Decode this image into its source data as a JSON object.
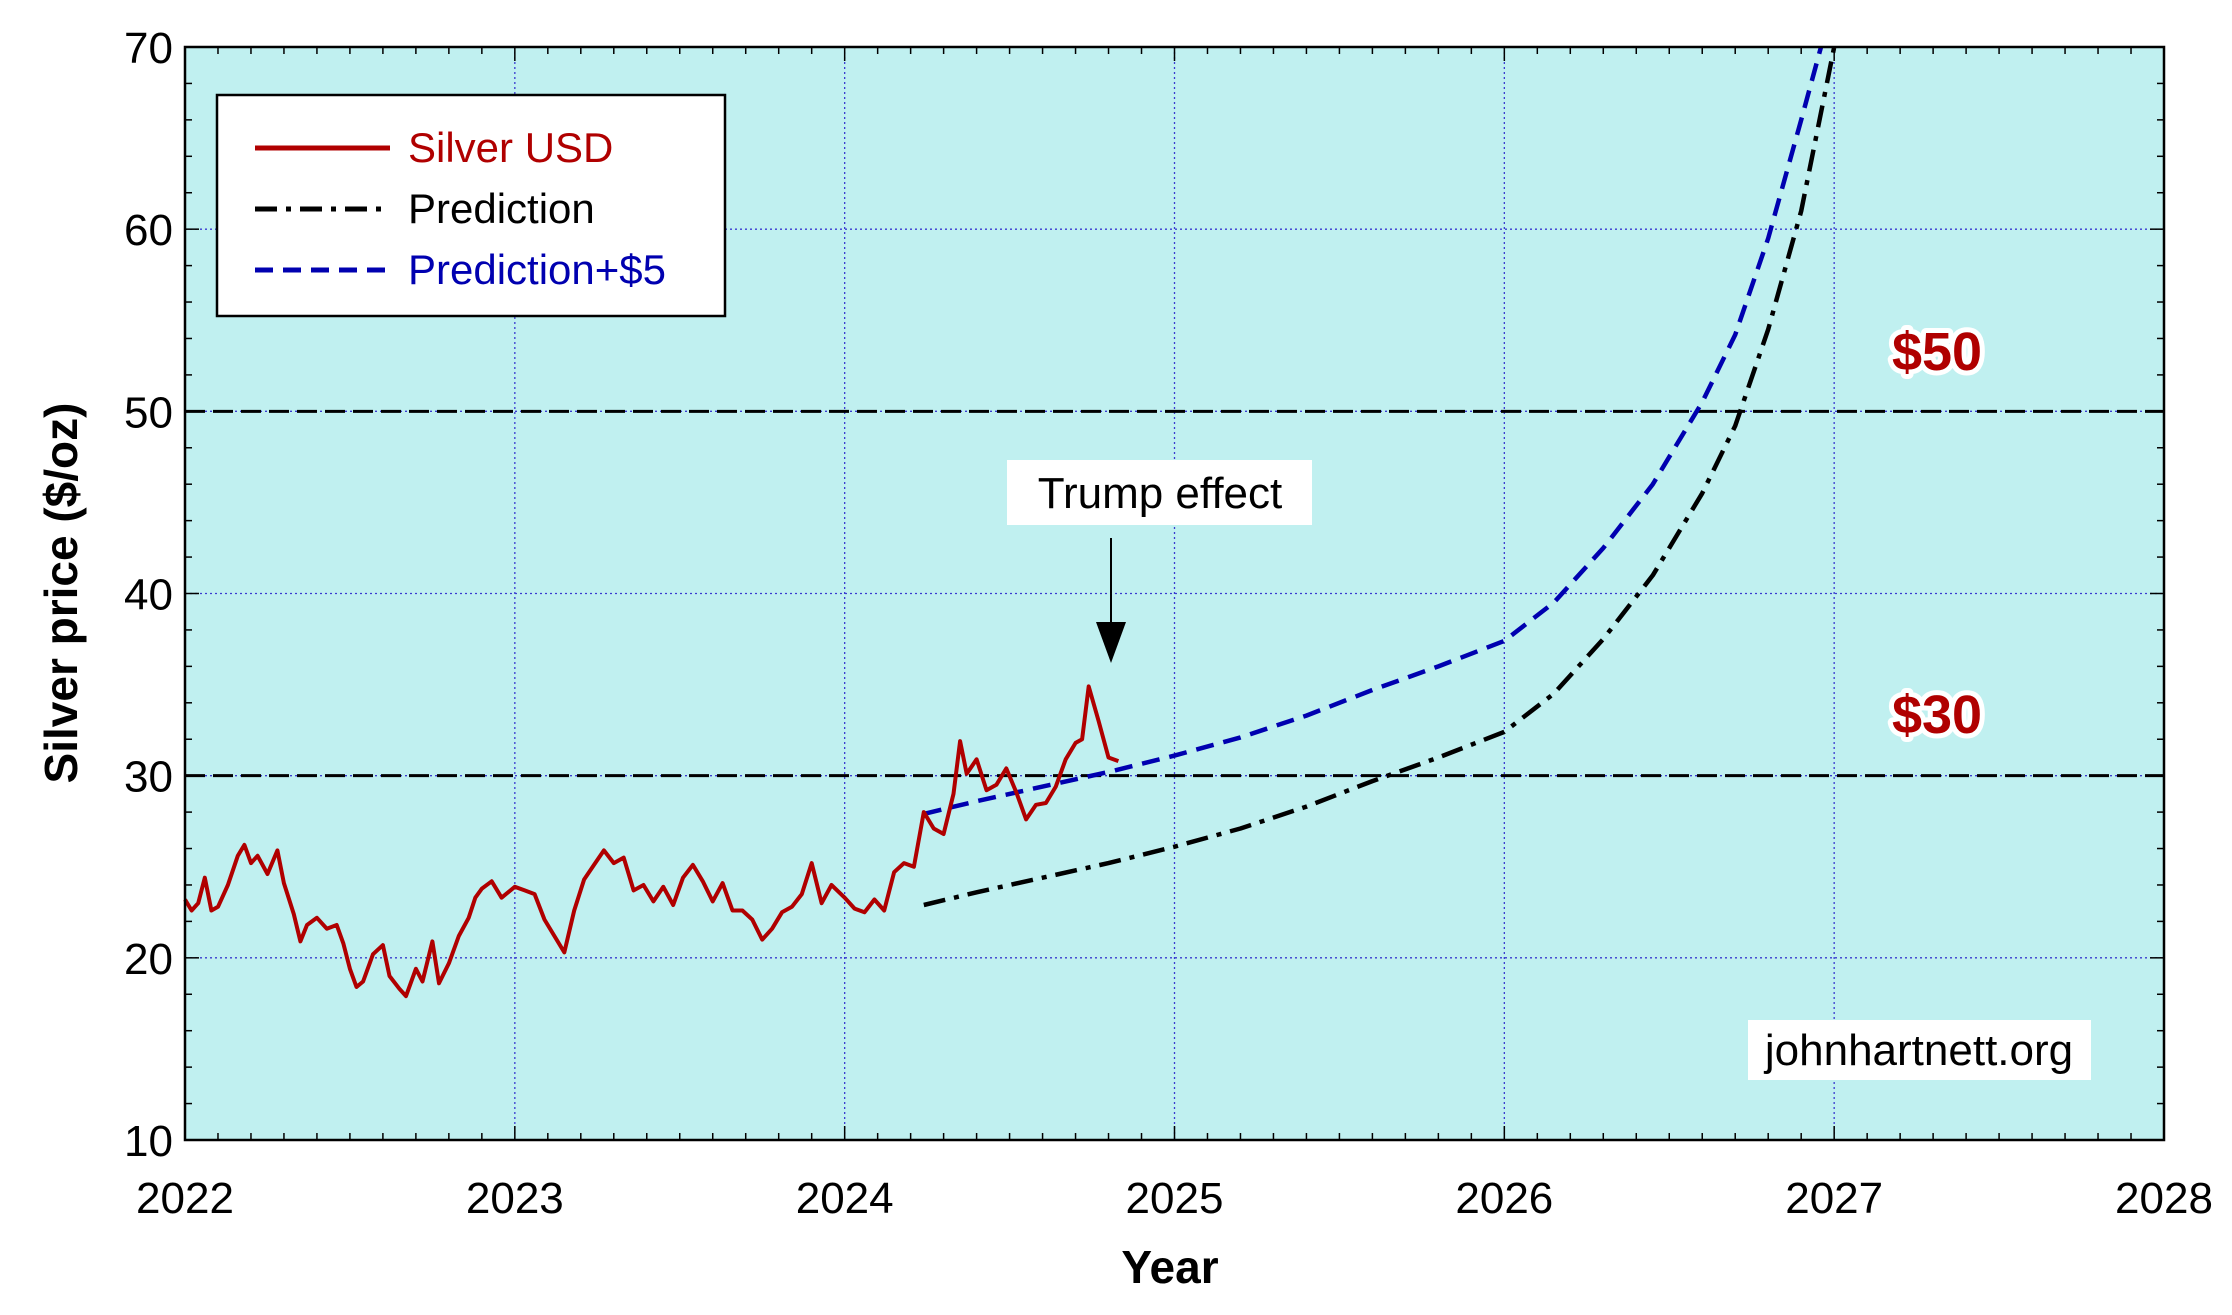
{
  "chart_data": {
    "type": "line",
    "xlabel": "Year",
    "ylabel": "Silver price ($/oz)",
    "xlim": [
      2022,
      2028
    ],
    "ylim": [
      10,
      70
    ],
    "xticks": [
      2022,
      2023,
      2024,
      2025,
      2026,
      2027,
      2028
    ],
    "yticks": [
      10,
      20,
      30,
      40,
      50,
      60,
      70
    ],
    "grid": true,
    "background": "#c0f0f0",
    "legend_position": "top-left",
    "series": [
      {
        "name": "Silver USD",
        "color": "#b00000",
        "style": "solid",
        "points": [
          [
            2022.0,
            23.2
          ],
          [
            2022.02,
            22.6
          ],
          [
            2022.04,
            23.0
          ],
          [
            2022.06,
            24.4
          ],
          [
            2022.08,
            22.6
          ],
          [
            2022.1,
            22.8
          ],
          [
            2022.13,
            24.0
          ],
          [
            2022.16,
            25.6
          ],
          [
            2022.18,
            26.2
          ],
          [
            2022.2,
            25.2
          ],
          [
            2022.22,
            25.6
          ],
          [
            2022.25,
            24.6
          ],
          [
            2022.28,
            25.9
          ],
          [
            2022.3,
            24.1
          ],
          [
            2022.33,
            22.4
          ],
          [
            2022.35,
            20.9
          ],
          [
            2022.37,
            21.8
          ],
          [
            2022.4,
            22.2
          ],
          [
            2022.43,
            21.6
          ],
          [
            2022.46,
            21.8
          ],
          [
            2022.48,
            20.8
          ],
          [
            2022.5,
            19.4
          ],
          [
            2022.52,
            18.4
          ],
          [
            2022.54,
            18.7
          ],
          [
            2022.57,
            20.2
          ],
          [
            2022.6,
            20.7
          ],
          [
            2022.62,
            19.0
          ],
          [
            2022.65,
            18.3
          ],
          [
            2022.67,
            17.9
          ],
          [
            2022.7,
            19.4
          ],
          [
            2022.72,
            18.7
          ],
          [
            2022.75,
            20.9
          ],
          [
            2022.77,
            18.6
          ],
          [
            2022.8,
            19.7
          ],
          [
            2022.83,
            21.2
          ],
          [
            2022.86,
            22.2
          ],
          [
            2022.88,
            23.3
          ],
          [
            2022.9,
            23.8
          ],
          [
            2022.93,
            24.2
          ],
          [
            2022.96,
            23.3
          ],
          [
            2023.0,
            23.9
          ],
          [
            2023.03,
            23.7
          ],
          [
            2023.06,
            23.5
          ],
          [
            2023.09,
            22.1
          ],
          [
            2023.12,
            21.2
          ],
          [
            2023.15,
            20.3
          ],
          [
            2023.18,
            22.6
          ],
          [
            2023.21,
            24.3
          ],
          [
            2023.24,
            25.1
          ],
          [
            2023.27,
            25.9
          ],
          [
            2023.3,
            25.2
          ],
          [
            2023.33,
            25.5
          ],
          [
            2023.36,
            23.7
          ],
          [
            2023.39,
            24.0
          ],
          [
            2023.42,
            23.1
          ],
          [
            2023.45,
            23.9
          ],
          [
            2023.48,
            22.9
          ],
          [
            2023.51,
            24.4
          ],
          [
            2023.54,
            25.1
          ],
          [
            2023.57,
            24.2
          ],
          [
            2023.6,
            23.1
          ],
          [
            2023.63,
            24.1
          ],
          [
            2023.66,
            22.6
          ],
          [
            2023.69,
            22.6
          ],
          [
            2023.72,
            22.1
          ],
          [
            2023.75,
            21.0
          ],
          [
            2023.78,
            21.6
          ],
          [
            2023.81,
            22.5
          ],
          [
            2023.84,
            22.8
          ],
          [
            2023.87,
            23.5
          ],
          [
            2023.9,
            25.2
          ],
          [
            2023.93,
            23.0
          ],
          [
            2023.96,
            24.0
          ],
          [
            2024.0,
            23.3
          ],
          [
            2024.03,
            22.7
          ],
          [
            2024.06,
            22.5
          ],
          [
            2024.09,
            23.2
          ],
          [
            2024.12,
            22.6
          ],
          [
            2024.15,
            24.7
          ],
          [
            2024.18,
            25.2
          ],
          [
            2024.21,
            25.0
          ],
          [
            2024.24,
            28.0
          ],
          [
            2024.27,
            27.1
          ],
          [
            2024.3,
            26.8
          ],
          [
            2024.33,
            29.0
          ],
          [
            2024.35,
            31.9
          ],
          [
            2024.37,
            30.1
          ],
          [
            2024.4,
            30.9
          ],
          [
            2024.43,
            29.2
          ],
          [
            2024.46,
            29.5
          ],
          [
            2024.49,
            30.4
          ],
          [
            2024.52,
            29.1
          ],
          [
            2024.55,
            27.6
          ],
          [
            2024.58,
            28.4
          ],
          [
            2024.61,
            28.5
          ],
          [
            2024.64,
            29.4
          ],
          [
            2024.67,
            30.9
          ],
          [
            2024.7,
            31.8
          ],
          [
            2024.72,
            32.0
          ],
          [
            2024.74,
            34.9
          ],
          [
            2024.77,
            33.0
          ],
          [
            2024.8,
            31.0
          ],
          [
            2024.83,
            30.8
          ]
        ]
      },
      {
        "name": "Prediction",
        "color": "#000000",
        "style": "dashdot",
        "points": [
          [
            2024.24,
            22.9
          ],
          [
            2024.4,
            23.6
          ],
          [
            2024.6,
            24.4
          ],
          [
            2024.8,
            25.2
          ],
          [
            2025.0,
            26.1
          ],
          [
            2025.2,
            27.1
          ],
          [
            2025.4,
            28.3
          ],
          [
            2025.6,
            29.7
          ],
          [
            2025.8,
            31.0
          ],
          [
            2026.0,
            32.4
          ],
          [
            2026.15,
            34.5
          ],
          [
            2026.3,
            37.5
          ],
          [
            2026.45,
            41.0
          ],
          [
            2026.6,
            45.5
          ],
          [
            2026.7,
            49.2
          ],
          [
            2026.8,
            54.5
          ],
          [
            2026.9,
            61.0
          ],
          [
            2027.0,
            70.0
          ]
        ]
      },
      {
        "name": "Prediction+$5",
        "color": "#0000b0",
        "style": "dashed",
        "points": [
          [
            2024.24,
            27.9
          ],
          [
            2024.4,
            28.6
          ],
          [
            2024.6,
            29.4
          ],
          [
            2024.8,
            30.2
          ],
          [
            2025.0,
            31.1
          ],
          [
            2025.2,
            32.1
          ],
          [
            2025.4,
            33.3
          ],
          [
            2025.6,
            34.7
          ],
          [
            2025.8,
            36.0
          ],
          [
            2026.0,
            37.4
          ],
          [
            2026.15,
            39.5
          ],
          [
            2026.3,
            42.5
          ],
          [
            2026.45,
            46.0
          ],
          [
            2026.6,
            50.5
          ],
          [
            2026.7,
            54.2
          ],
          [
            2026.8,
            59.5
          ],
          [
            2026.9,
            66.0
          ],
          [
            2026.96,
            70.0
          ]
        ]
      }
    ],
    "reference_lines": [
      {
        "y": 50,
        "label": "$50",
        "color": "#000000"
      },
      {
        "y": 30,
        "label": "$30",
        "color": "#000000"
      }
    ],
    "annotations": [
      {
        "text": "Trump effect",
        "target": [
          2024.75,
          35.0
        ]
      }
    ],
    "watermark": "johnhartnett.org"
  }
}
